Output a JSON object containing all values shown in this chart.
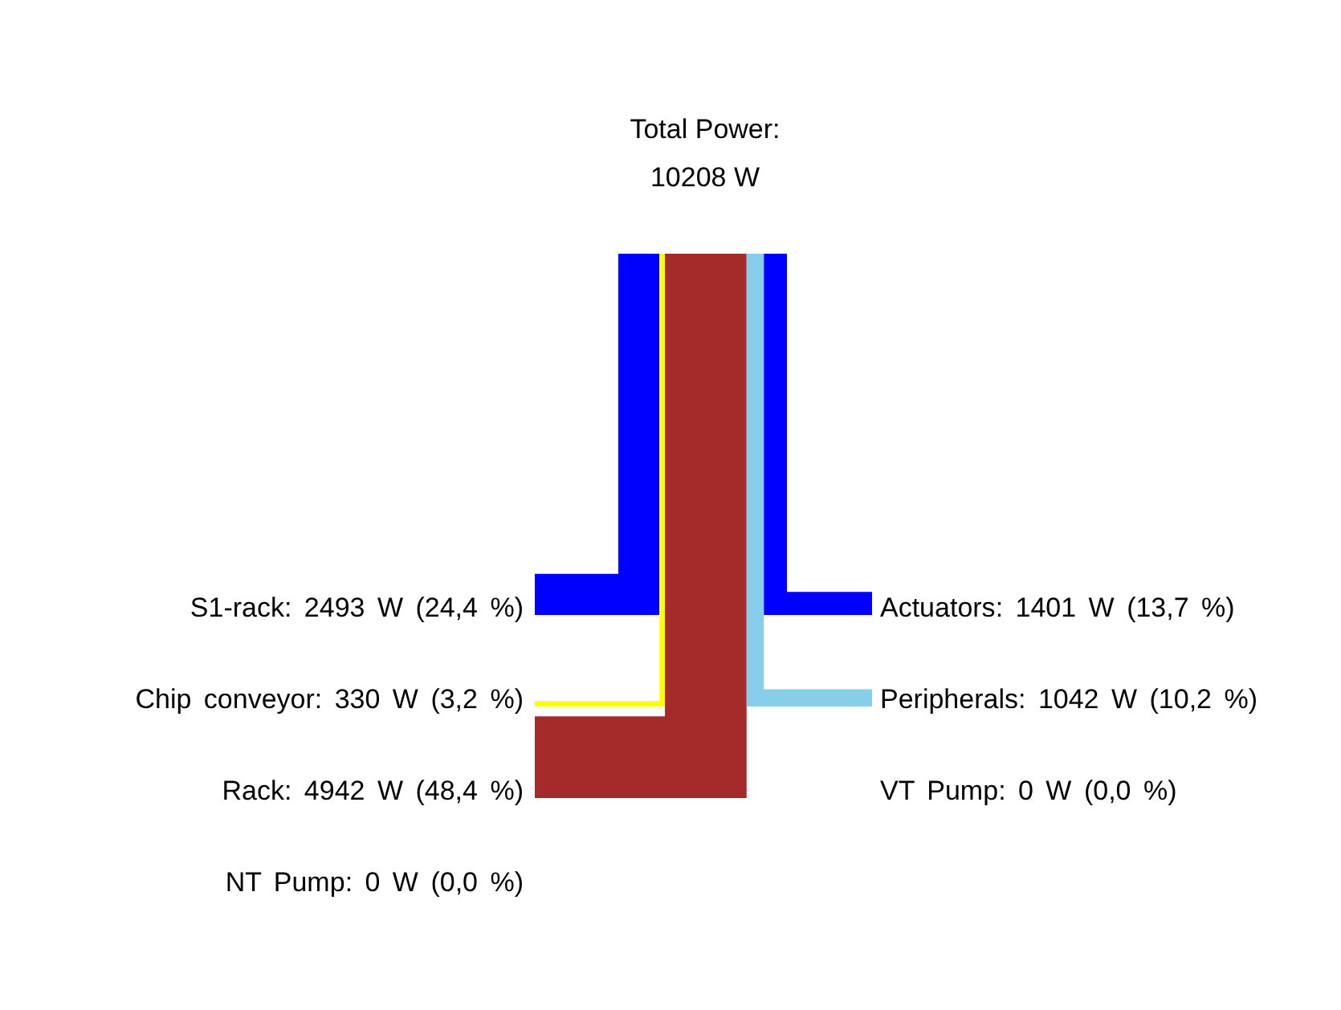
{
  "chart_data": {
    "type": "other",
    "title": "Total Power:",
    "subtitle": "10208 W",
    "categories": [
      "S1-rack",
      "Chip conveyor",
      "Rack",
      "NT Pump",
      "Actuators",
      "Peripherals",
      "VT Pump"
    ],
    "values": [
      2493,
      330,
      4942,
      0,
      1401,
      1042,
      0
    ],
    "value_labels": [
      ": 2493 W (24,4 %)",
      ": 330 W (3,2 %)",
      ": 4942 W (48,4 %)",
      ": 0 W (0,0 %)",
      ": 1401 W (13,7 %)",
      ": 1042 W (10,2 %)",
      ": 0 W (0,0 %)"
    ],
    "colors": [
      "#0000ff",
      "#ffff00",
      "#a52a2a",
      null,
      "#0000ff",
      "#87ceeb",
      null
    ]
  }
}
